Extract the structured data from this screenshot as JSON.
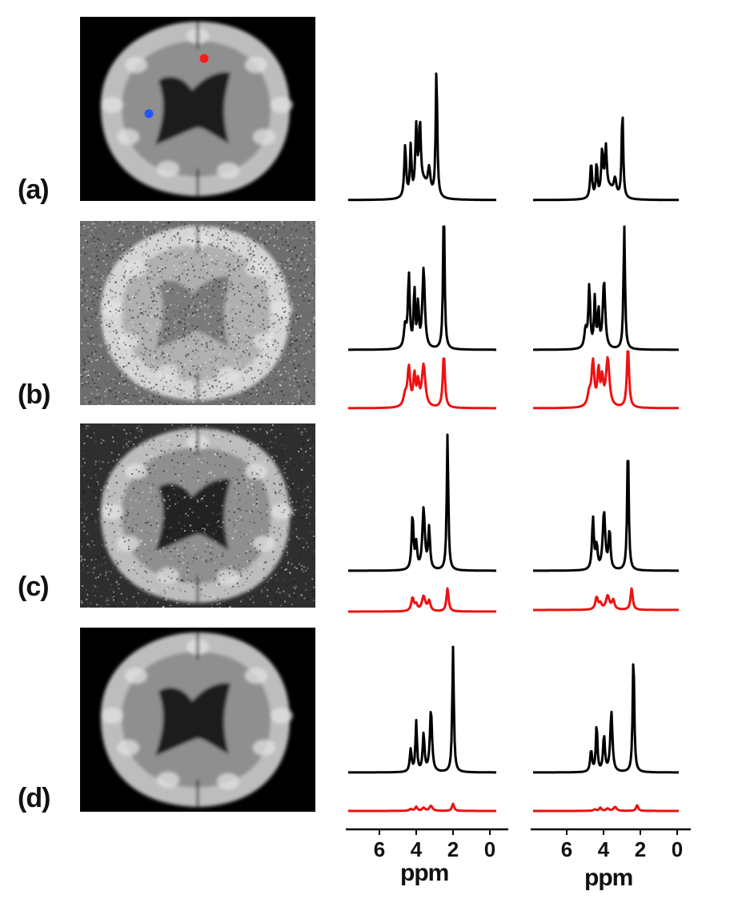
{
  "panels": [
    {
      "label": "(a)",
      "background": "#000000",
      "noise": 0.0,
      "dots": true
    },
    {
      "label": "(b)",
      "background": "#6e6e6e",
      "noise": 1.0,
      "dots": false
    },
    {
      "label": "(c)",
      "background": "#2e2e2e",
      "noise": 0.55,
      "dots": false
    },
    {
      "label": "(d)",
      "background": "#000000",
      "noise": 0.0,
      "dots": false
    }
  ],
  "marker_colors": {
    "red": "#ff1a1a",
    "blue": "#2255ff"
  },
  "chart_data": [
    {
      "type": "line",
      "xlabel": "ppm",
      "x_ticks": [
        6,
        4,
        2,
        0
      ],
      "xlim": [
        7.5,
        -0.5
      ],
      "series": [
        {
          "color": "#000000",
          "rows": [
            0,
            1,
            2,
            3
          ]
        },
        {
          "color": "#ee1111",
          "rows": [
            1,
            2,
            3
          ]
        }
      ]
    },
    {
      "type": "line",
      "xlabel": "ppm",
      "x_ticks": [
        6,
        4,
        2,
        0
      ],
      "xlim": [
        7.5,
        -0.5
      ],
      "series": [
        {
          "color": "#000000",
          "rows": [
            0,
            1,
            2,
            3
          ]
        },
        {
          "color": "#ee1111",
          "rows": [
            1,
            2,
            3
          ]
        }
      ]
    }
  ]
}
